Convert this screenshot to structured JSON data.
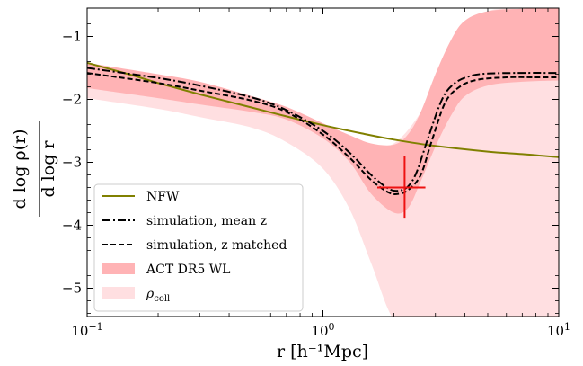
{
  "chart_data": {
    "type": "line",
    "x_scale": "log",
    "xlim": [
      0.1,
      10
    ],
    "ylim": [
      -5.45,
      -0.55
    ],
    "xlabel": "r [h⁻¹Mpc]",
    "ylabel_numerator": "d log ρ(r)",
    "ylabel_denominator": "d log r",
    "x_ticks": [
      {
        "value": 0.1,
        "base": "10",
        "exp": "−1"
      },
      {
        "value": 1,
        "base": "10",
        "exp": "0"
      },
      {
        "value": 10,
        "base": "10",
        "exp": "1"
      }
    ],
    "y_ticks": [
      {
        "value": -1,
        "label": "−1"
      },
      {
        "value": -2,
        "label": "−2"
      },
      {
        "value": -3,
        "label": "−3"
      },
      {
        "value": -4,
        "label": "−4"
      },
      {
        "value": -5,
        "label": "−5"
      }
    ],
    "grid": false,
    "legend_position": "lower-left",
    "colors": {
      "nfw": "#808000",
      "act_band": "#ffb3b5",
      "rho_band": "#ffdfe1",
      "marker": "#ee1111",
      "sim": "#000000"
    },
    "series": [
      {
        "name": "NFW",
        "style": "solid",
        "x": [
          0.1,
          0.15,
          0.2,
          0.3,
          0.5,
          0.7,
          1.0,
          1.5,
          2.0,
          3.0,
          5.0,
          7.0,
          10.0
        ],
        "y": [
          -1.42,
          -1.6,
          -1.74,
          -1.92,
          -2.13,
          -2.27,
          -2.41,
          -2.55,
          -2.64,
          -2.74,
          -2.83,
          -2.87,
          -2.92
        ]
      },
      {
        "name": "simulation, mean z",
        "style": "dashdot",
        "x": [
          0.1,
          0.2,
          0.3,
          0.5,
          0.7,
          1.0,
          1.3,
          1.6,
          1.9,
          2.1,
          2.3,
          2.5,
          2.8,
          3.2,
          3.6,
          4.2,
          5.0,
          7.0,
          10.0
        ],
        "y": [
          -1.5,
          -1.66,
          -1.78,
          -1.97,
          -2.17,
          -2.5,
          -2.85,
          -3.2,
          -3.42,
          -3.45,
          -3.38,
          -3.15,
          -2.6,
          -2.0,
          -1.75,
          -1.63,
          -1.59,
          -1.58,
          -1.58
        ]
      },
      {
        "name": "simulation, z matched",
        "style": "dashed",
        "x": [
          0.1,
          0.2,
          0.3,
          0.5,
          0.7,
          1.0,
          1.3,
          1.6,
          1.9,
          2.1,
          2.3,
          2.6,
          2.9,
          3.3,
          3.8,
          4.5,
          6.0,
          8.0,
          10.0
        ],
        "y": [
          -1.58,
          -1.74,
          -1.86,
          -2.02,
          -2.2,
          -2.56,
          -2.93,
          -3.28,
          -3.48,
          -3.5,
          -3.44,
          -3.2,
          -2.65,
          -2.05,
          -1.8,
          -1.69,
          -1.65,
          -1.65,
          -1.65
        ]
      },
      {
        "name": "ACT DR5 WL",
        "style": "band",
        "x": [
          0.1,
          0.2,
          0.3,
          0.5,
          0.7,
          1.0,
          1.3,
          1.6,
          2.0,
          2.3,
          2.6,
          3.0,
          3.5,
          4.0,
          5.0,
          7.0,
          10.0
        ],
        "upper": [
          -1.42,
          -1.6,
          -1.72,
          -1.95,
          -2.12,
          -2.38,
          -2.57,
          -2.7,
          -2.72,
          -2.55,
          -2.2,
          -1.6,
          -1.05,
          -0.75,
          -0.6,
          -0.56,
          -0.55
        ],
        "lower": [
          -1.82,
          -1.98,
          -2.08,
          -2.2,
          -2.32,
          -2.62,
          -3.0,
          -3.5,
          -3.8,
          -3.72,
          -3.3,
          -2.75,
          -2.25,
          -1.95,
          -1.78,
          -1.72,
          -1.7
        ]
      },
      {
        "name": "ρ_coll",
        "style": "band",
        "x": [
          0.1,
          0.2,
          0.3,
          0.5,
          0.7,
          1.0,
          1.3,
          1.6,
          2.0,
          2.5,
          3.0,
          4.0,
          5.0,
          7.0,
          10.0
        ],
        "upper": [
          -1.44,
          -1.62,
          -1.75,
          -1.96,
          -2.12,
          -2.4,
          -2.62,
          -2.75,
          -2.7,
          -2.3,
          -1.75,
          -0.9,
          -0.6,
          -0.56,
          -0.55
        ],
        "lower": [
          -1.98,
          -2.15,
          -2.28,
          -2.45,
          -2.68,
          -3.1,
          -3.75,
          -4.6,
          -5.5,
          -5.5,
          -5.5,
          -5.5,
          -5.5,
          -5.5,
          -5.5
        ]
      }
    ],
    "marker": {
      "x": 2.22,
      "y": -3.4,
      "x_low": 1.7,
      "x_high": 2.72,
      "y_low": -2.9,
      "y_high": -3.88
    }
  },
  "legend": {
    "nfw": "NFW",
    "mean_z": "simulation, mean z",
    "z_matched": "simulation, z matched",
    "act": "ACT DR5 WL",
    "rho_main": "ρ",
    "rho_sub": "coll"
  }
}
